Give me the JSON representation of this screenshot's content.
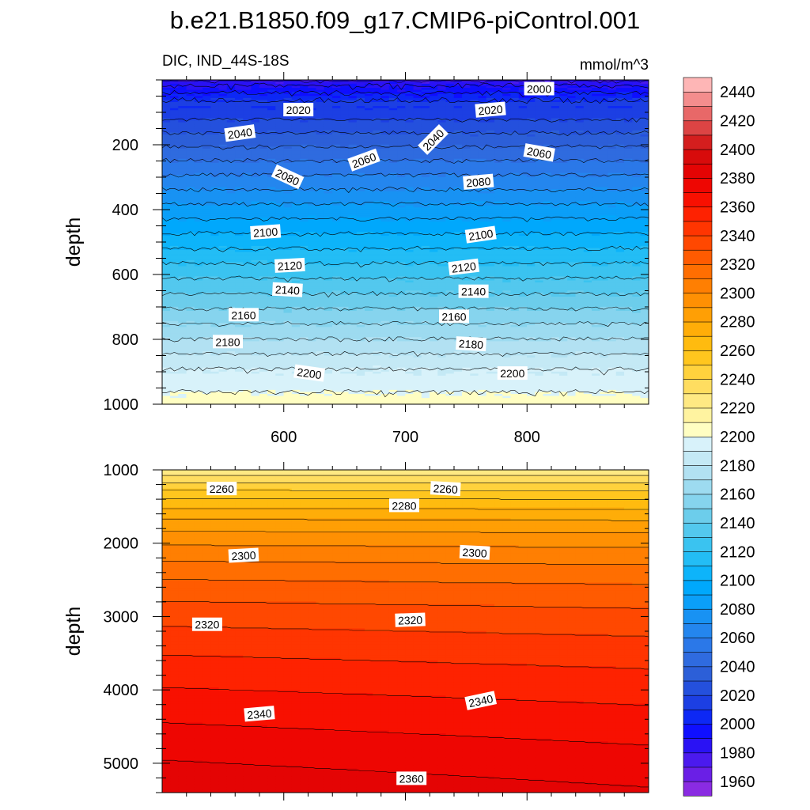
{
  "title": "b.e21.B1850.f09_g17.CMIP6-piControl.001",
  "subtitle_left": "DIC, IND_44S-18S",
  "subtitle_right": "mmol/m^3",
  "colors": {
    "contour_line": "#000000",
    "label_bg": "#ffffff"
  },
  "chart_data": [
    {
      "type": "contour",
      "name": "upper panel",
      "xlabel": "",
      "ylabel": "depth",
      "xlim": [
        500,
        900
      ],
      "ylim": [
        0,
        1000
      ],
      "y_inverted": true,
      "xticks": [
        600,
        700,
        800
      ],
      "xtick_labels": [
        "600",
        "700",
        "800"
      ],
      "yticks": [
        200,
        400,
        600,
        800,
        1000
      ],
      "ytick_labels": [
        "200",
        "400",
        "600",
        "800",
        "1000"
      ],
      "contour_interval": 10,
      "contour_labels": [
        {
          "text": "2000",
          "x": 810,
          "y": 28,
          "angle": 0
        },
        {
          "text": "2020",
          "x": 612,
          "y": 93,
          "angle": 0
        },
        {
          "text": "2020",
          "x": 770,
          "y": 93,
          "angle": -5
        },
        {
          "text": "2040",
          "x": 564,
          "y": 165,
          "angle": -8
        },
        {
          "text": "2040",
          "x": 723,
          "y": 185,
          "angle": -45
        },
        {
          "text": "2060",
          "x": 666,
          "y": 248,
          "angle": -20
        },
        {
          "text": "2060",
          "x": 810,
          "y": 225,
          "angle": 10
        },
        {
          "text": "2080",
          "x": 603,
          "y": 300,
          "angle": 25
        },
        {
          "text": "2080",
          "x": 760,
          "y": 315,
          "angle": -5
        },
        {
          "text": "2100",
          "x": 585,
          "y": 470,
          "angle": -4
        },
        {
          "text": "2100",
          "x": 762,
          "y": 478,
          "angle": -8
        },
        {
          "text": "2120",
          "x": 605,
          "y": 573,
          "angle": -3
        },
        {
          "text": "2120",
          "x": 748,
          "y": 578,
          "angle": -7
        },
        {
          "text": "2140",
          "x": 603,
          "y": 648,
          "angle": 3
        },
        {
          "text": "2140",
          "x": 756,
          "y": 653,
          "angle": 0
        },
        {
          "text": "2160",
          "x": 567,
          "y": 725,
          "angle": 0
        },
        {
          "text": "2160",
          "x": 740,
          "y": 730,
          "angle": 0
        },
        {
          "text": "2180",
          "x": 554,
          "y": 808,
          "angle": 0
        },
        {
          "text": "2180",
          "x": 754,
          "y": 815,
          "angle": 3
        },
        {
          "text": "2200",
          "x": 621,
          "y": 905,
          "angle": 8
        },
        {
          "text": "2200",
          "x": 788,
          "y": 905,
          "angle": 0
        }
      ]
    },
    {
      "type": "contour",
      "name": "lower panel",
      "xlabel": "",
      "ylabel": "depth",
      "xlim": [
        500,
        900
      ],
      "ylim": [
        1000,
        5400
      ],
      "y_inverted": true,
      "xticks": [
        600,
        700,
        800
      ],
      "xtick_labels": [
        "",
        "",
        ""
      ],
      "yticks": [
        1000,
        2000,
        3000,
        4000,
        5000
      ],
      "ytick_labels": [
        "1000",
        "2000",
        "3000",
        "4000",
        "5000"
      ],
      "contour_interval": 10,
      "contour_labels": [
        {
          "text": "2260",
          "x": 549,
          "y": 1260,
          "angle": 0
        },
        {
          "text": "2260",
          "x": 733,
          "y": 1260,
          "angle": 3
        },
        {
          "text": "2280",
          "x": 699,
          "y": 1490,
          "angle": 0
        },
        {
          "text": "2300",
          "x": 567,
          "y": 2170,
          "angle": -3
        },
        {
          "text": "2300",
          "x": 757,
          "y": 2130,
          "angle": 3
        },
        {
          "text": "2320",
          "x": 537,
          "y": 3110,
          "angle": 0
        },
        {
          "text": "2320",
          "x": 704,
          "y": 3050,
          "angle": -2
        },
        {
          "text": "2340",
          "x": 580,
          "y": 4330,
          "angle": -5
        },
        {
          "text": "2340",
          "x": 762,
          "y": 4150,
          "angle": -12
        },
        {
          "text": "2360",
          "x": 705,
          "y": 5210,
          "angle": 0
        }
      ]
    }
  ],
  "colorbar": {
    "levels": [
      1960,
      1970,
      1980,
      1990,
      2000,
      2010,
      2020,
      2030,
      2040,
      2050,
      2060,
      2070,
      2080,
      2090,
      2100,
      2110,
      2120,
      2130,
      2140,
      2150,
      2160,
      2170,
      2180,
      2190,
      2200,
      2210,
      2220,
      2230,
      2240,
      2250,
      2260,
      2270,
      2280,
      2290,
      2300,
      2310,
      2320,
      2330,
      2340,
      2350,
      2360,
      2370,
      2380,
      2390,
      2400,
      2410,
      2420,
      2430,
      2440,
      2450
    ],
    "tick_labels": [
      "1960",
      "1980",
      "2000",
      "2020",
      "2040",
      "2060",
      "2080",
      "2100",
      "2120",
      "2140",
      "2160",
      "2180",
      "2200",
      "2220",
      "2240",
      "2260",
      "2280",
      "2300",
      "2320",
      "2340",
      "2360",
      "2380",
      "2400",
      "2420",
      "2440"
    ],
    "colors": [
      "#8a2be2",
      "#6a1fe6",
      "#4b1aee",
      "#2a12f4",
      "#0f0fff",
      "#0d28f5",
      "#1c3fe3",
      "#2450dd",
      "#2c5fd8",
      "#2f6bdf",
      "#2b78e8",
      "#2486ee",
      "#1892f3",
      "#0b9ff8",
      "#00a8fc",
      "#0db4fa",
      "#23bdf5",
      "#3ac3f0",
      "#53c8ee",
      "#6ccdeb",
      "#86d4ee",
      "#9ddbf0",
      "#b2e1f2",
      "#c4e9f5",
      "#d8f2fa",
      "#fffec2",
      "#fff3a0",
      "#ffe983",
      "#ffdd60",
      "#ffd23d",
      "#ffc61e",
      "#ffbb0f",
      "#ffad08",
      "#ff9f05",
      "#ff9003",
      "#ff7f02",
      "#ff6e01",
      "#ff5b01",
      "#ff4801",
      "#ff3501",
      "#fe2201",
      "#f81001",
      "#ee0602",
      "#e40404",
      "#d80b0b",
      "#d41e1e",
      "#dc4444",
      "#e86868",
      "#f48d8d",
      "#feb6b6"
    ]
  }
}
